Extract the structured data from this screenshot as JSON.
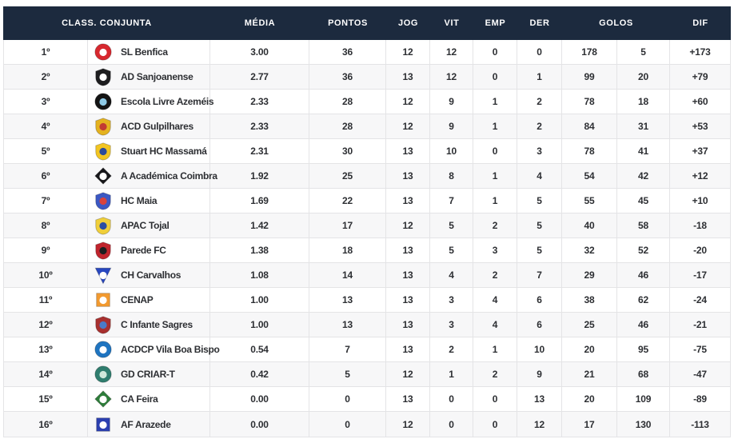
{
  "header": {
    "class_conjunta": "CLASS. CONJUNTA",
    "media": "MÉDIA",
    "pontos": "PONTOS",
    "jog": "JOG",
    "vit": "VIT",
    "emp": "EMP",
    "der": "DER",
    "golos": "GOLOS",
    "dif": "DIF"
  },
  "colors": {
    "header_bg": "#1c2a3e",
    "header_text": "#ffffff",
    "row_alt_bg": "#f7f7f8",
    "border": "#e4e4e6",
    "body_text": "#2d2f33"
  },
  "rows": [
    {
      "rank": "1º",
      "team": "SL Benfica",
      "logo": {
        "icon": "crest-eagle",
        "shape": "circle",
        "c1": "#d7282f",
        "c2": "#ffffff"
      },
      "media": "3.00",
      "pontos": "36",
      "jog": "12",
      "vit": "12",
      "emp": "0",
      "der": "0",
      "golos_marcados": "178",
      "golos_sofridos": "5",
      "dif": "+173"
    },
    {
      "rank": "2º",
      "team": "AD Sanjoanense",
      "logo": {
        "icon": "crest-ads-shield",
        "shape": "shield",
        "c1": "#1d1d1f",
        "c2": "#ffffff"
      },
      "media": "2.77",
      "pontos": "36",
      "jog": "13",
      "vit": "12",
      "emp": "0",
      "der": "1",
      "golos_marcados": "99",
      "golos_sofridos": "20",
      "dif": "+79"
    },
    {
      "rank": "3º",
      "team": "Escola Livre Azeméis",
      "logo": {
        "icon": "crest-round-badge",
        "shape": "circle",
        "c1": "#141414",
        "c2": "#8ecae6"
      },
      "media": "2.33",
      "pontos": "28",
      "jog": "12",
      "vit": "9",
      "emp": "1",
      "der": "2",
      "golos_marcados": "78",
      "golos_sofridos": "18",
      "dif": "+60"
    },
    {
      "rank": "4º",
      "team": "ACD Gulpilhares",
      "logo": {
        "icon": "crest-torch",
        "shape": "shield",
        "c1": "#e4b21f",
        "c2": "#c23a33"
      },
      "media": "2.33",
      "pontos": "28",
      "jog": "12",
      "vit": "9",
      "emp": "1",
      "der": "2",
      "golos_marcados": "84",
      "golos_sofridos": "31",
      "dif": "+53"
    },
    {
      "rank": "5º",
      "team": "Stuart HC Massamá",
      "logo": {
        "icon": "crest-shcm",
        "shape": "shield",
        "c1": "#f2c522",
        "c2": "#2b4a9b"
      },
      "media": "2.31",
      "pontos": "30",
      "jog": "13",
      "vit": "10",
      "emp": "0",
      "der": "3",
      "golos_marcados": "78",
      "golos_sofridos": "41",
      "dif": "+37"
    },
    {
      "rank": "6º",
      "team": "A Académica Coimbra",
      "logo": {
        "icon": "crest-black-diamond",
        "shape": "diamond",
        "c1": "#17171a",
        "c2": "#ffffff"
      },
      "media": "1.92",
      "pontos": "25",
      "jog": "13",
      "vit": "8",
      "emp": "1",
      "der": "4",
      "golos_marcados": "54",
      "golos_sofridos": "42",
      "dif": "+12"
    },
    {
      "rank": "7º",
      "team": "HC Maia",
      "logo": {
        "icon": "crest-castle",
        "shape": "shield",
        "c1": "#3b58c4",
        "c2": "#d8433c"
      },
      "media": "1.69",
      "pontos": "22",
      "jog": "13",
      "vit": "7",
      "emp": "1",
      "der": "5",
      "golos_marcados": "55",
      "golos_sofridos": "45",
      "dif": "+10"
    },
    {
      "rank": "8º",
      "team": "APAC Tojal",
      "logo": {
        "icon": "crest-striped-shield",
        "shape": "shield",
        "c1": "#f0cf3a",
        "c2": "#2b4ea2"
      },
      "media": "1.42",
      "pontos": "17",
      "jog": "12",
      "vit": "5",
      "emp": "2",
      "der": "5",
      "golos_marcados": "40",
      "golos_sofridos": "58",
      "dif": "-18"
    },
    {
      "rank": "9º",
      "team": "Parede FC",
      "logo": {
        "icon": "crest-red-black-shield",
        "shape": "shield",
        "c1": "#c0242d",
        "c2": "#1d1d1f"
      },
      "media": "1.38",
      "pontos": "18",
      "jog": "13",
      "vit": "5",
      "emp": "3",
      "der": "5",
      "golos_marcados": "32",
      "golos_sofridos": "52",
      "dif": "-20"
    },
    {
      "rank": "10º",
      "team": "CH Carvalhos",
      "logo": {
        "icon": "crest-blue-pennant",
        "shape": "triangle",
        "c1": "#2847c0",
        "c2": "#ffffff"
      },
      "media": "1.08",
      "pontos": "14",
      "jog": "13",
      "vit": "4",
      "emp": "2",
      "der": "7",
      "golos_marcados": "29",
      "golos_sofridos": "46",
      "dif": "-17"
    },
    {
      "rank": "11º",
      "team": "CENAP",
      "logo": {
        "icon": "crest-orange-rings",
        "shape": "square",
        "c1": "#f29a30",
        "c2": "#ffffff"
      },
      "media": "1.00",
      "pontos": "13",
      "jog": "13",
      "vit": "3",
      "emp": "4",
      "der": "6",
      "golos_marcados": "38",
      "golos_sofridos": "62",
      "dif": "-24"
    },
    {
      "rank": "12º",
      "team": "C Infante Sagres",
      "logo": {
        "icon": "crest-crowned-shield",
        "shape": "shield",
        "c1": "#a8302f",
        "c2": "#4a7bc8"
      },
      "media": "1.00",
      "pontos": "13",
      "jog": "13",
      "vit": "3",
      "emp": "4",
      "der": "6",
      "golos_marcados": "25",
      "golos_sofridos": "46",
      "dif": "-21"
    },
    {
      "rank": "13º",
      "team": "ACDCP Vila Boa Bispo",
      "logo": {
        "icon": "crest-blue-swirl",
        "shape": "circle",
        "c1": "#1f74c0",
        "c2": "#ffffff"
      },
      "media": "0.54",
      "pontos": "7",
      "jog": "13",
      "vit": "2",
      "emp": "1",
      "der": "10",
      "golos_marcados": "20",
      "golos_sofridos": "95",
      "dif": "-75"
    },
    {
      "rank": "14º",
      "team": "GD CRIAR-T",
      "logo": {
        "icon": "crest-hockey-sticks",
        "shape": "circle",
        "c1": "#2f7d6e",
        "c2": "#cfe8da"
      },
      "media": "0.42",
      "pontos": "5",
      "jog": "12",
      "vit": "1",
      "emp": "2",
      "der": "9",
      "golos_marcados": "21",
      "golos_sofridos": "68",
      "dif": "-47"
    },
    {
      "rank": "15º",
      "team": "CA Feira",
      "logo": {
        "icon": "crest-green-diamond",
        "shape": "diamond",
        "c1": "#2e7d3a",
        "c2": "#ffffff"
      },
      "media": "0.00",
      "pontos": "0",
      "jog": "13",
      "vit": "0",
      "emp": "0",
      "der": "13",
      "golos_marcados": "20",
      "golos_sofridos": "109",
      "dif": "-89"
    },
    {
      "rank": "16º",
      "team": "AF Arazede",
      "logo": {
        "icon": "crest-tower",
        "shape": "square",
        "c1": "#2b3fb0",
        "c2": "#ffffff"
      },
      "media": "0.00",
      "pontos": "0",
      "jog": "12",
      "vit": "0",
      "emp": "0",
      "der": "12",
      "golos_marcados": "17",
      "golos_sofridos": "130",
      "dif": "-113"
    }
  ]
}
